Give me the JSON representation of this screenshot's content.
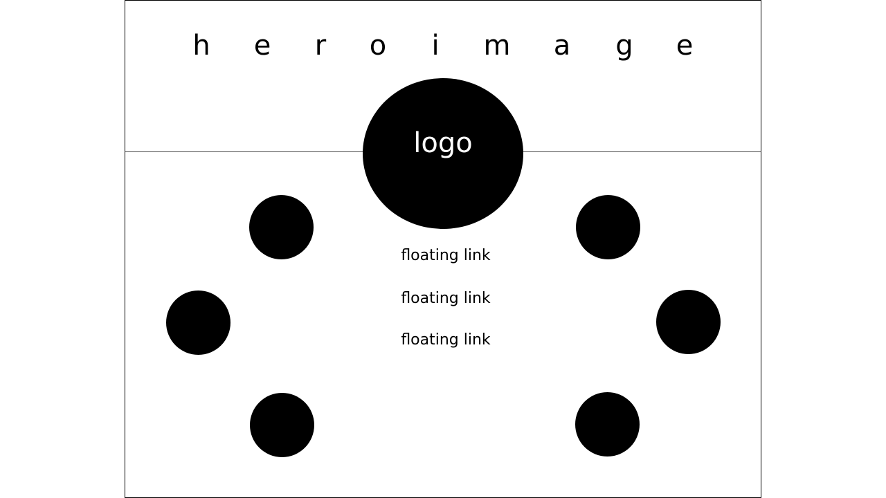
{
  "hero": {
    "letters": [
      "h",
      "e",
      "r",
      "o",
      "i",
      "m",
      "a",
      "g",
      "e"
    ]
  },
  "logo": {
    "label": "logo"
  },
  "links": [
    {
      "label": "floating link"
    },
    {
      "label": "floating link"
    },
    {
      "label": "floating link"
    }
  ]
}
